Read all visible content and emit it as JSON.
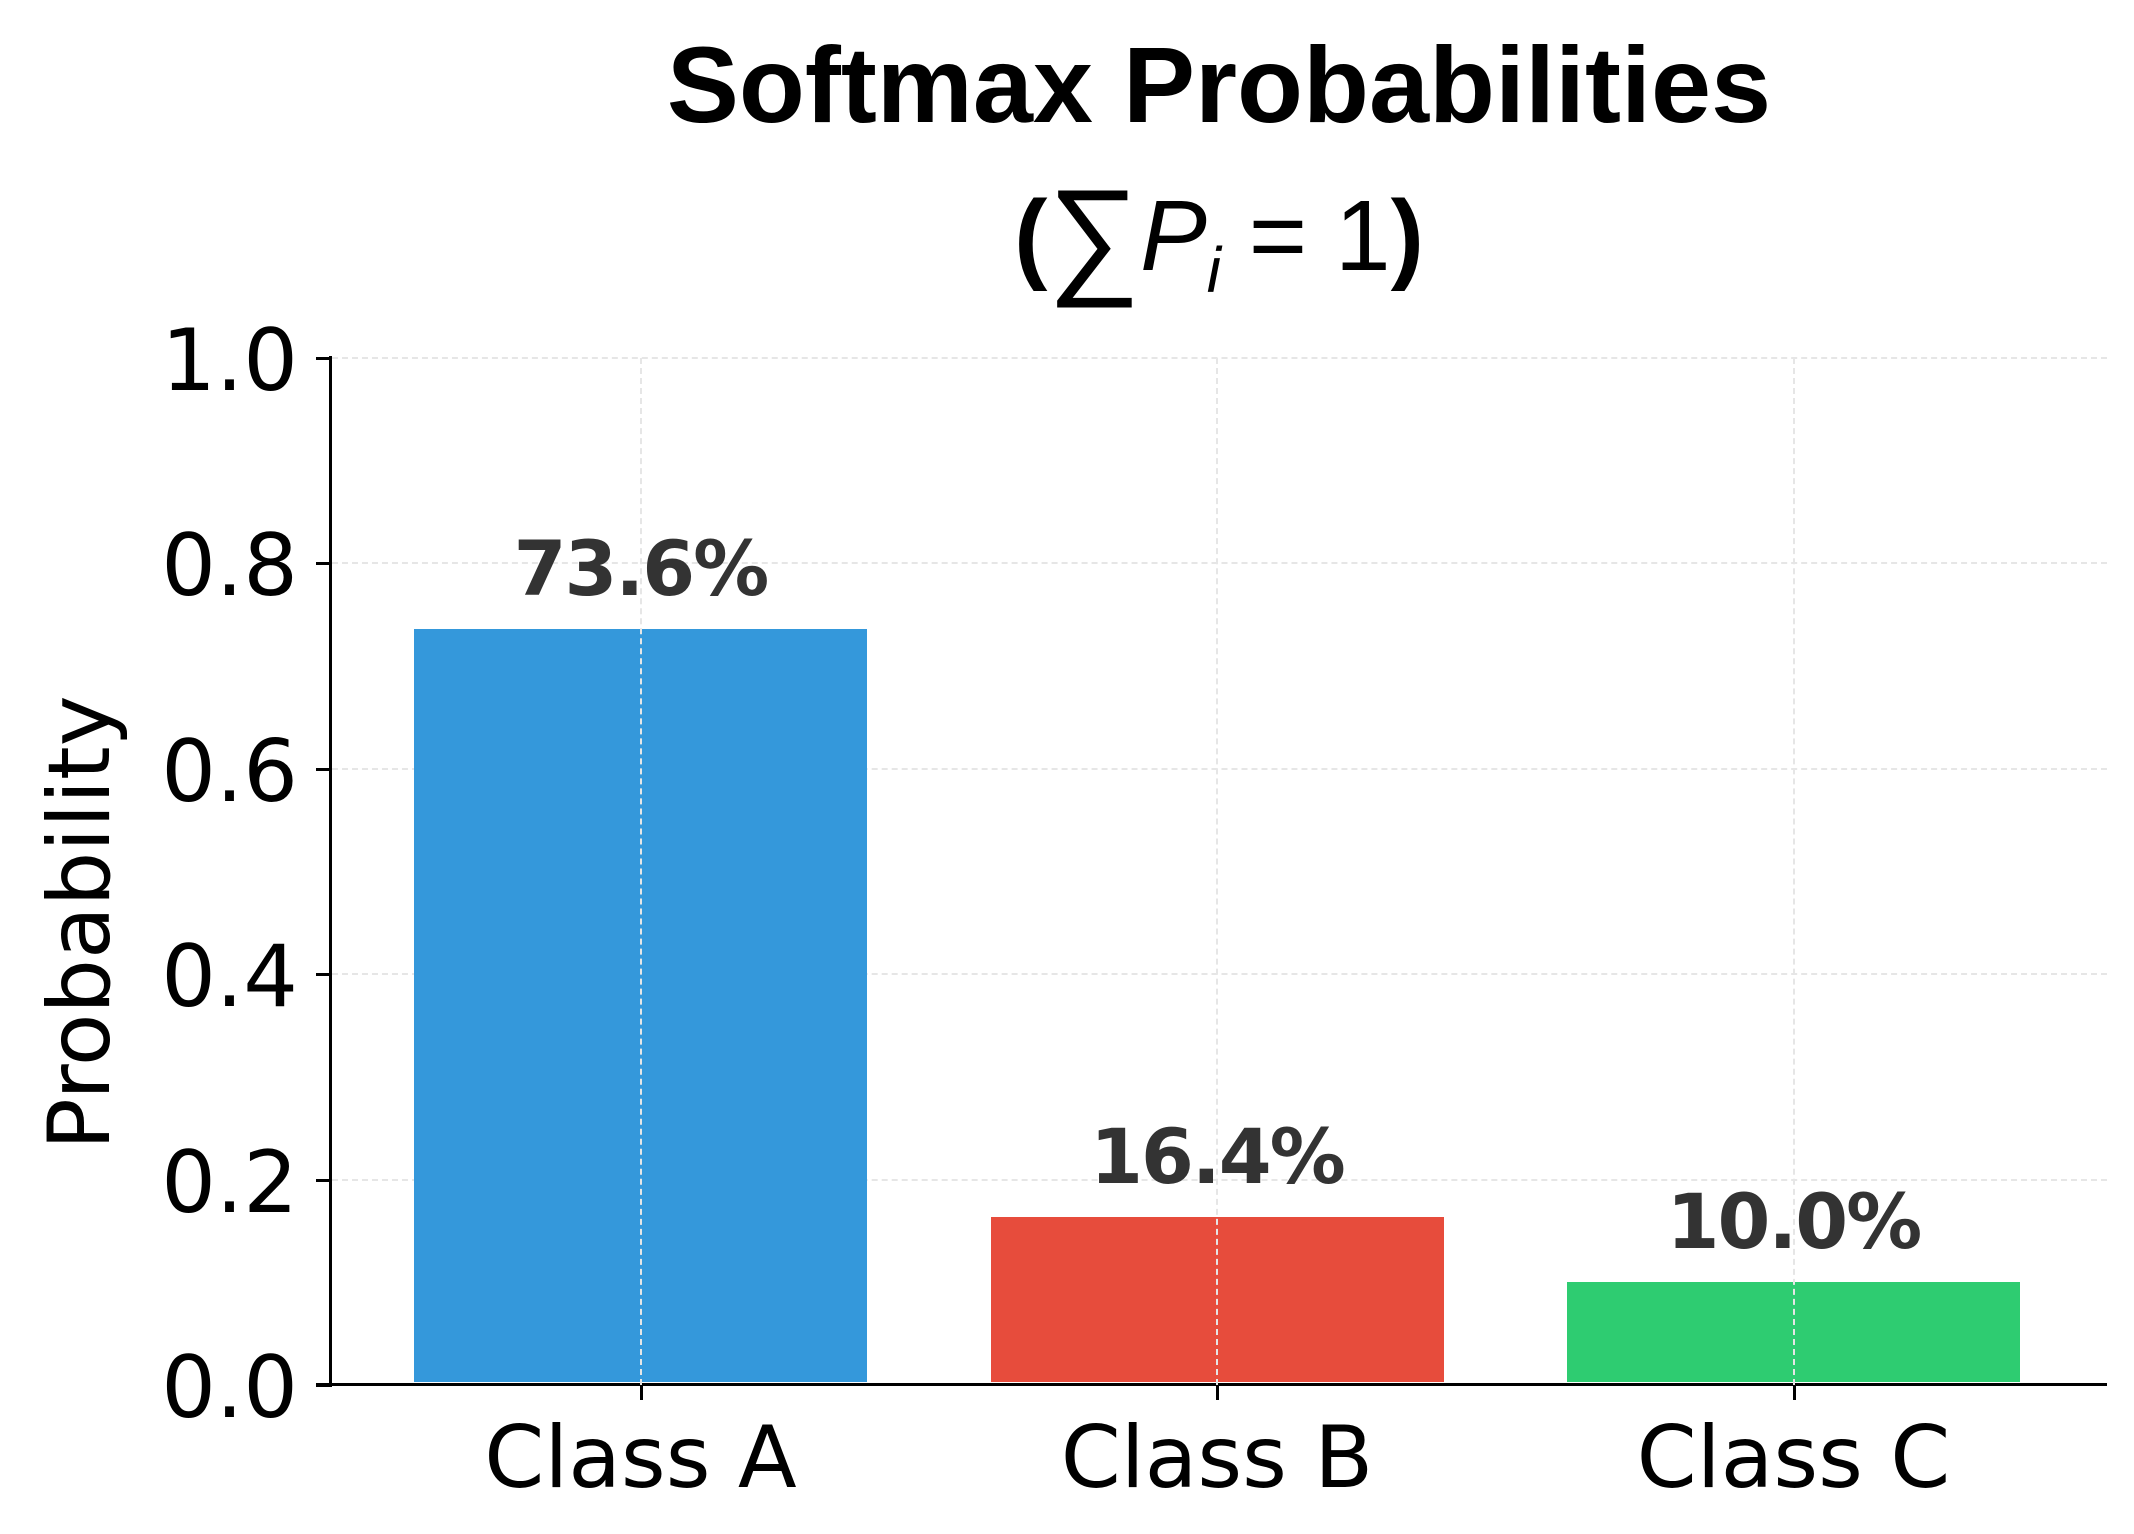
{
  "chart_data": {
    "type": "bar",
    "title": "Softmax Probabilities",
    "subtitle": "(∑Pᵢ = 1)",
    "subtitle_parts": {
      "open": "(",
      "sigma": "∑",
      "var": "P",
      "sub": "i",
      "rest": " = 1",
      "close": ")"
    },
    "xlabel": "",
    "ylabel": "Probability",
    "categories": [
      "Class A",
      "Class B",
      "Class C"
    ],
    "values": [
      0.736,
      0.164,
      0.1
    ],
    "value_labels": [
      "73.6%",
      "16.4%",
      "10.0%"
    ],
    "colors": [
      "#3498db",
      "#e74c3c",
      "#2ecc71"
    ],
    "ylim": [
      0,
      1.0
    ],
    "yticks": [
      "0.0",
      "0.2",
      "0.4",
      "0.6",
      "0.8",
      "1.0"
    ],
    "grid": true,
    "legend": null
  }
}
